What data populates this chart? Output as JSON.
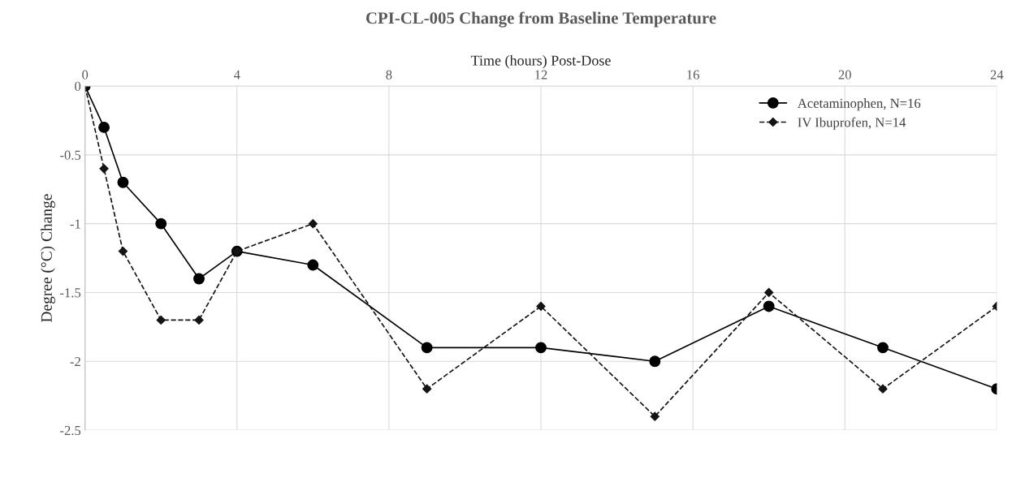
{
  "chart_data": {
    "type": "line",
    "title": "CPI-CL-005 Change from Baseline Temperature",
    "xlabel": "Time (hours) Post-Dose",
    "ylabel": "Degree (°C) Change",
    "x": [
      0,
      0.5,
      1,
      2,
      3,
      4,
      6,
      9,
      12,
      15,
      18,
      21,
      24
    ],
    "series": [
      {
        "name": "Acetaminophen, N=16",
        "color": "#000000",
        "marker": "circle",
        "line_style": "solid",
        "values": [
          0,
          -0.3,
          -0.7,
          -1,
          -1.4,
          -1.2,
          -1.3,
          -1.9,
          -1.9,
          -2,
          -1.6,
          -1.9,
          -2.2
        ]
      },
      {
        "name": "IV Ibuprofen, N=14",
        "color": "#141414",
        "marker": "diamond",
        "line_style": "dashed",
        "values": [
          0,
          -0.6,
          -1.2,
          -1.7,
          -1.7,
          -1.2,
          -1,
          -2.2,
          -1.6,
          -2.4,
          -1.5,
          -2.2,
          -1.6
        ]
      }
    ],
    "xlim": [
      0,
      24
    ],
    "xticks": [
      0,
      4,
      8,
      12,
      16,
      20,
      24
    ],
    "ylim": [
      -2.5,
      0
    ],
    "yticks": [
      0,
      -0.5,
      -1,
      -1.5,
      -2,
      -2.5
    ],
    "grid": true,
    "legend": "top right"
  }
}
